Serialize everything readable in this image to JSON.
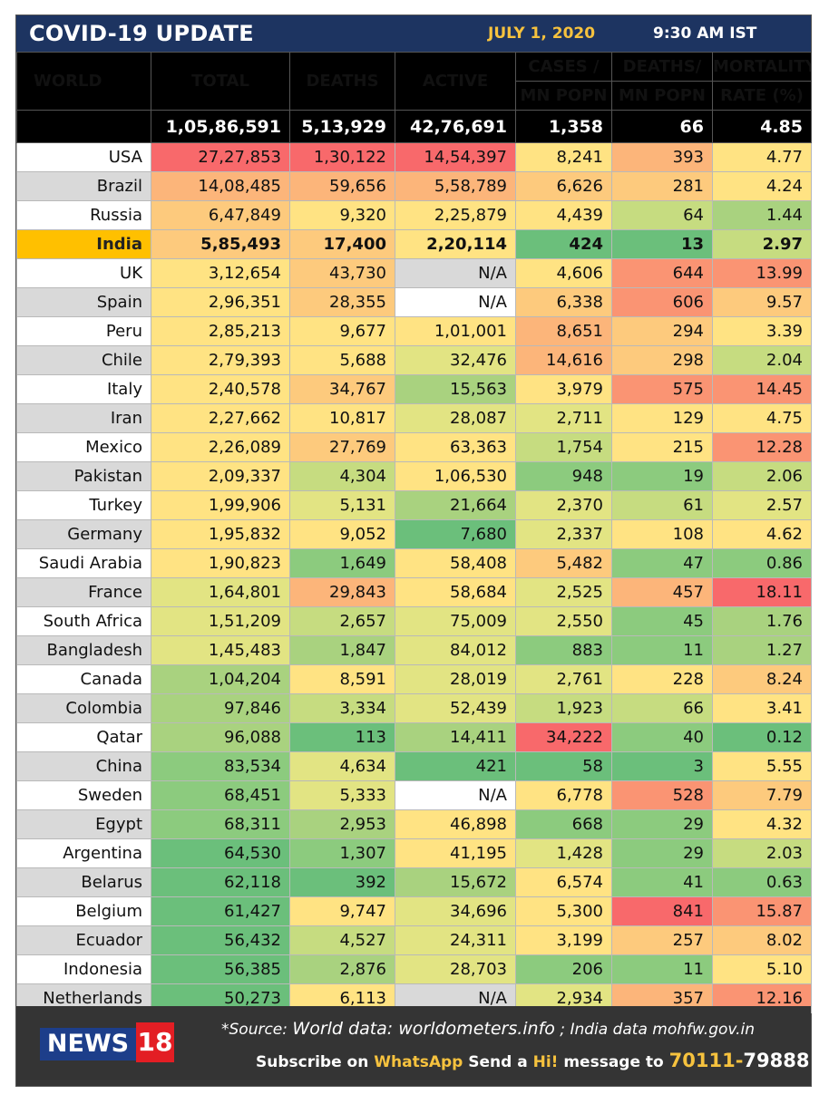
{
  "header": {
    "title": "COVID-19 UPDATE",
    "date": "JULY 1, 2020",
    "time": "9:30 AM IST"
  },
  "columns": {
    "region": "WORLD",
    "total": "TOTAL",
    "deaths": "DEATHS",
    "active": "ACTIVE",
    "cases_mn_1": "CASES /",
    "cases_mn_2": "MN POPN",
    "deaths_mn_1": "DEATHS/",
    "deaths_mn_2": "MN POPN",
    "mortality_1": "MORTALITY",
    "mortality_2": "RATE (%)"
  },
  "world": {
    "total": "1,05,86,591",
    "deaths": "5,13,929",
    "active": "42,76,691",
    "cases_mn": "1,358",
    "deaths_mn": "66",
    "mortality": "4.85"
  },
  "rows": [
    [
      "USA",
      "27,27,853",
      "1,30,122",
      "14,54,397",
      "8,241",
      "393",
      "4.77"
    ],
    [
      "Brazil",
      "14,08,485",
      "59,656",
      "5,58,789",
      "6,626",
      "281",
      "4.24"
    ],
    [
      "Russia",
      "6,47,849",
      "9,320",
      "2,25,879",
      "4,439",
      "64",
      "1.44"
    ],
    [
      "India",
      "5,85,493",
      "17,400",
      "2,20,114",
      "424",
      "13",
      "2.97"
    ],
    [
      "UK",
      "3,12,654",
      "43,730",
      "N/A",
      "4,606",
      "644",
      "13.99"
    ],
    [
      "Spain",
      "2,96,351",
      "28,355",
      "N/A",
      "6,338",
      "606",
      "9.57"
    ],
    [
      "Peru",
      "2,85,213",
      "9,677",
      "1,01,001",
      "8,651",
      "294",
      "3.39"
    ],
    [
      "Chile",
      "2,79,393",
      "5,688",
      "32,476",
      "14,616",
      "298",
      "2.04"
    ],
    [
      "Italy",
      "2,40,578",
      "34,767",
      "15,563",
      "3,979",
      "575",
      "14.45"
    ],
    [
      "Iran",
      "2,27,662",
      "10,817",
      "28,087",
      "2,711",
      "129",
      "4.75"
    ],
    [
      "Mexico",
      "2,26,089",
      "27,769",
      "63,363",
      "1,754",
      "215",
      "12.28"
    ],
    [
      "Pakistan",
      "2,09,337",
      "4,304",
      "1,06,530",
      "948",
      "19",
      "2.06"
    ],
    [
      "Turkey",
      "1,99,906",
      "5,131",
      "21,664",
      "2,370",
      "61",
      "2.57"
    ],
    [
      "Germany",
      "1,95,832",
      "9,052",
      "7,680",
      "2,337",
      "108",
      "4.62"
    ],
    [
      "Saudi Arabia",
      "1,90,823",
      "1,649",
      "58,408",
      "5,482",
      "47",
      "0.86"
    ],
    [
      "France",
      "1,64,801",
      "29,843",
      "58,684",
      "2,525",
      "457",
      "18.11"
    ],
    [
      "South Africa",
      "1,51,209",
      "2,657",
      "75,009",
      "2,550",
      "45",
      "1.76"
    ],
    [
      "Bangladesh",
      "1,45,483",
      "1,847",
      "84,012",
      "883",
      "11",
      "1.27"
    ],
    [
      "Canada",
      "1,04,204",
      "8,591",
      "28,019",
      "2,761",
      "228",
      "8.24"
    ],
    [
      "Colombia",
      "97,846",
      "3,334",
      "52,439",
      "1,923",
      "66",
      "3.41"
    ],
    [
      "Qatar",
      "96,088",
      "113",
      "14,411",
      "34,222",
      "40",
      "0.12"
    ],
    [
      "China",
      "83,534",
      "4,634",
      "421",
      "58",
      "3",
      "5.55"
    ],
    [
      "Sweden",
      "68,451",
      "5,333",
      "N/A",
      "6,778",
      "528",
      "7.79"
    ],
    [
      "Egypt",
      "68,311",
      "2,953",
      "46,898",
      "668",
      "29",
      "4.32"
    ],
    [
      "Argentina",
      "64,530",
      "1,307",
      "41,195",
      "1,428",
      "29",
      "2.03"
    ],
    [
      "Belarus",
      "62,118",
      "392",
      "15,672",
      "6,574",
      "41",
      "0.63"
    ],
    [
      "Belgium",
      "61,427",
      "9,747",
      "34,696",
      "5,300",
      "841",
      "15.87"
    ],
    [
      "Ecuador",
      "56,432",
      "4,527",
      "24,311",
      "3,199",
      "257",
      "8.02"
    ],
    [
      "Indonesia",
      "56,385",
      "2,876",
      "28,703",
      "206",
      "11",
      "5.10"
    ],
    [
      "Netherlands",
      "50,273",
      "6,113",
      "N/A",
      "2,934",
      "357",
      "12.16"
    ]
  ],
  "colors": [
    [
      "r",
      "r",
      "r",
      "y",
      "o",
      "y"
    ],
    [
      "o",
      "o",
      "o",
      "lo",
      "lo",
      "y"
    ],
    [
      "lo",
      "y",
      "y",
      "y",
      "yg",
      "lg"
    ],
    [
      "lo",
      "lo",
      "y",
      "dg",
      "dg",
      "yg"
    ],
    [
      "y",
      "lo",
      "na",
      "y",
      "ro",
      "ro"
    ],
    [
      "y",
      "lo",
      "na2",
      "lo",
      "ro",
      "lo"
    ],
    [
      "y",
      "y",
      "y",
      "o",
      "lo",
      "y"
    ],
    [
      "y",
      "y",
      "ly",
      "o",
      "lo",
      "yg"
    ],
    [
      "y",
      "lo",
      "lg",
      "y",
      "ro",
      "ro"
    ],
    [
      "y",
      "y",
      "ly",
      "ly",
      "y",
      "y"
    ],
    [
      "y",
      "lo",
      "y",
      "yg",
      "y",
      "ro"
    ],
    [
      "y",
      "yg",
      "y",
      "g",
      "g",
      "yg"
    ],
    [
      "y",
      "ly",
      "lg",
      "ly",
      "yg",
      "ly"
    ],
    [
      "y",
      "y",
      "dg",
      "ly",
      "y",
      "y"
    ],
    [
      "y",
      "g",
      "y",
      "lo",
      "g",
      "g"
    ],
    [
      "ly",
      "o",
      "y",
      "ly",
      "o",
      "r"
    ],
    [
      "ly",
      "yg",
      "ly",
      "ly",
      "g",
      "lg"
    ],
    [
      "ly",
      "lg",
      "ly",
      "g",
      "g",
      "lg"
    ],
    [
      "lg",
      "y",
      "ly",
      "ly",
      "y",
      "lo"
    ],
    [
      "lg",
      "yg",
      "ly",
      "yg",
      "yg",
      "y"
    ],
    [
      "lg",
      "dg",
      "lg",
      "r",
      "g",
      "dg"
    ],
    [
      "g",
      "ly",
      "dg",
      "dg",
      "dg",
      "y"
    ],
    [
      "g",
      "ly",
      "na2",
      "y",
      "ro",
      "lo"
    ],
    [
      "g",
      "lg",
      "y",
      "g",
      "g",
      "y"
    ],
    [
      "dg",
      "g",
      "y",
      "ly",
      "g",
      "yg"
    ],
    [
      "dg",
      "dg",
      "lg",
      "y",
      "g",
      "g"
    ],
    [
      "dg",
      "y",
      "ly",
      "y",
      "r",
      "ro"
    ],
    [
      "dg",
      "yg",
      "ly",
      "y",
      "lo",
      "lo"
    ],
    [
      "dg",
      "lg",
      "ly",
      "g",
      "g",
      "y"
    ],
    [
      "dg",
      "y",
      "na",
      "ly",
      "o",
      "ro"
    ]
  ],
  "footer": {
    "brand_left": "NEWS",
    "brand_right": "18",
    "source_prefix": "*Source: ",
    "source_world": "World data: worldometers.info",
    "source_sep": " ; ",
    "source_india": "India data mohfw.gov.in",
    "subscribe_1": "Subscribe on ",
    "subscribe_app": "WhatsApp",
    "subscribe_2": " Send a ",
    "subscribe_hi": "Hi!",
    "subscribe_3": " message to ",
    "phone_a": "70111-",
    "phone_b": "79888"
  }
}
